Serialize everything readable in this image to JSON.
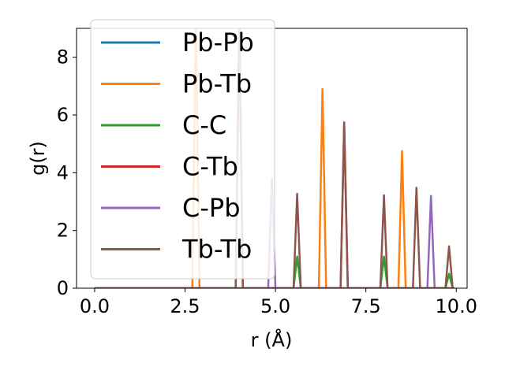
{
  "chart_data": {
    "type": "line",
    "title": "",
    "xlabel": "r (Å)",
    "ylabel": "g(r)",
    "xlim": [
      -0.5,
      10.3
    ],
    "ylim": [
      0,
      9.0
    ],
    "xticks": [
      0.0,
      2.5,
      5.0,
      7.5,
      10.0
    ],
    "xtick_labels": [
      "0.0",
      "2.5",
      "5.0",
      "7.5",
      "10.0"
    ],
    "yticks": [
      0,
      2,
      4,
      6,
      8
    ],
    "ytick_labels": [
      "0",
      "2",
      "4",
      "6",
      "8"
    ],
    "grid": false,
    "legend": "upper-left",
    "series": [
      {
        "name": "Pb-Pb",
        "color": "#1f77b4",
        "peaks": [
          [
            4.0,
            9.4
          ]
        ]
      },
      {
        "name": "Pb-Tb",
        "color": "#ff7f0e",
        "peaks": [
          [
            2.8,
            9.4
          ],
          [
            6.3,
            6.9
          ],
          [
            8.5,
            4.75
          ]
        ]
      },
      {
        "name": "C-C",
        "color": "#2ca02c",
        "peaks": [
          [
            5.6,
            1.1
          ],
          [
            8.0,
            1.1
          ],
          [
            9.8,
            0.5
          ]
        ]
      },
      {
        "name": "C-Tb",
        "color": "#d62728",
        "peaks": [
          [
            4.0,
            9.4
          ],
          [
            6.9,
            5.7
          ]
        ]
      },
      {
        "name": "C-Pb",
        "color": "#9467bd",
        "peaks": [
          [
            4.9,
            3.8
          ],
          [
            9.3,
            3.2
          ]
        ]
      },
      {
        "name": "Tb-Tb",
        "color": "#8c564b",
        "peaks": [
          [
            4.0,
            9.4
          ],
          [
            5.6,
            3.27
          ],
          [
            6.9,
            5.75
          ],
          [
            8.0,
            3.22
          ],
          [
            8.9,
            3.48
          ],
          [
            9.8,
            1.45
          ]
        ]
      }
    ]
  }
}
